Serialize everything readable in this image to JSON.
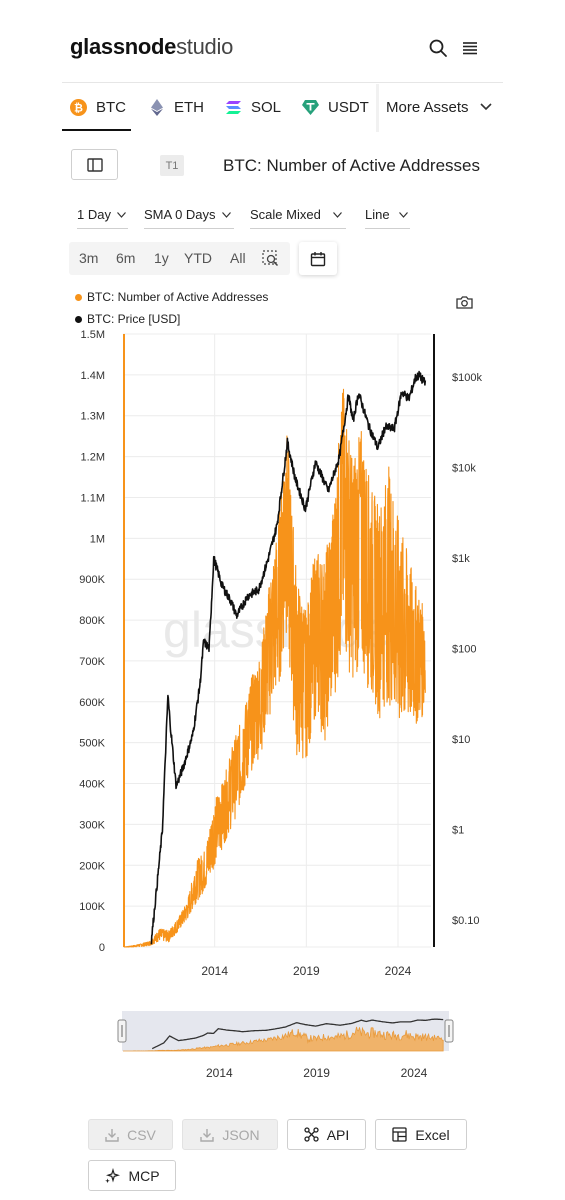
{
  "header": {
    "logo_bold": "glassnode",
    "logo_light": "studio",
    "icons": [
      "search-icon",
      "menu-icon"
    ]
  },
  "assets": {
    "tabs": [
      {
        "label": "BTC",
        "icon": "bitcoin-icon",
        "color": "#f7931a",
        "active": true
      },
      {
        "label": "ETH",
        "icon": "ethereum-icon",
        "color": "#8a92b2"
      },
      {
        "label": "SOL",
        "icon": "solana-icon",
        "color": "#9945ff"
      },
      {
        "label": "USDT",
        "icon": "tether-icon",
        "color": "#26a17b"
      }
    ],
    "more_label": "More Assets"
  },
  "chart_header": {
    "tier": "T1",
    "title": "BTC: Number of Active Addresses"
  },
  "controls": {
    "resolution": "1 Day",
    "sma": "SMA 0 Days",
    "scale": "Scale Mixed",
    "chart_type": "Line"
  },
  "ranges": [
    "3m",
    "6m",
    "1y",
    "YTD",
    "All"
  ],
  "chart_data": {
    "type": "line",
    "title": "",
    "legend_placement": "top-left",
    "grid": true,
    "watermark": "glassnode",
    "x": {
      "ticks": [
        "2014",
        "2019",
        "2024"
      ],
      "range": [
        2009.0,
        2025.8
      ]
    },
    "y_left": {
      "scale": "linear",
      "ylim": [
        0,
        1500000
      ],
      "ticks": [
        "0",
        "100K",
        "200K",
        "300K",
        "400K",
        "500K",
        "600K",
        "700K",
        "800K",
        "900K",
        "1M",
        "1.1M",
        "1.2M",
        "1.3M",
        "1.4M",
        "1.5M"
      ]
    },
    "y_right": {
      "scale": "log",
      "ylim": [
        0.05,
        300000
      ],
      "ticks": [
        "$0.10",
        "$1",
        "$10",
        "$100",
        "$1k",
        "$10k",
        "$100k"
      ]
    },
    "series": [
      {
        "name": "BTC: Number of Active Addresses",
        "color": "#f7931a",
        "axis": "left",
        "x": [
          2009.05,
          2009.5,
          2010.0,
          2010.5,
          2011.0,
          2011.5,
          2012.0,
          2012.5,
          2013.0,
          2013.5,
          2014.0,
          2014.5,
          2015.0,
          2015.5,
          2016.0,
          2016.5,
          2017.0,
          2017.5,
          2017.9,
          2018.5,
          2019.0,
          2019.5,
          2020.0,
          2020.5,
          2021.0,
          2021.5,
          2022.0,
          2022.5,
          2023.0,
          2023.5,
          2024.0,
          2024.5,
          2025.0,
          2025.5
        ],
        "y": [
          0,
          2000,
          5000,
          10000,
          30000,
          25000,
          55000,
          90000,
          160000,
          190000,
          280000,
          330000,
          410000,
          470000,
          560000,
          600000,
          750000,
          880000,
          1100000,
          700000,
          640000,
          800000,
          720000,
          860000,
          1050000,
          900000,
          980000,
          870000,
          840000,
          900000,
          810000,
          760000,
          700000,
          660000
        ],
        "y_high": [
          0,
          3000,
          8000,
          15000,
          45000,
          40000,
          70000,
          110000,
          210000,
          240000,
          360000,
          410000,
          500000,
          560000,
          660000,
          720000,
          900000,
          1050000,
          1290000,
          900000,
          820000,
          980000,
          950000,
          1090000,
          1380000,
          1200000,
          1270000,
          1130000,
          1080000,
          1180000,
          1050000,
          970000,
          880000,
          820000
        ],
        "y_low": [
          0,
          0,
          1000,
          4000,
          15000,
          12000,
          38000,
          65000,
          110000,
          140000,
          200000,
          250000,
          300000,
          360000,
          430000,
          470000,
          560000,
          630000,
          760000,
          450000,
          460000,
          560000,
          500000,
          600000,
          720000,
          650000,
          680000,
          610000,
          560000,
          600000,
          520000,
          530000,
          540000,
          570000
        ]
      },
      {
        "name": "BTC: Price [USD]",
        "color": "#111111",
        "axis": "right",
        "x": [
          2010.55,
          2010.9,
          2011.15,
          2011.45,
          2011.6,
          2011.9,
          2012.3,
          2012.8,
          2013.2,
          2013.4,
          2013.7,
          2013.95,
          2014.4,
          2014.9,
          2015.2,
          2015.8,
          2016.4,
          2016.9,
          2017.4,
          2017.97,
          2018.4,
          2018.95,
          2019.5,
          2019.95,
          2020.2,
          2020.8,
          2021.3,
          2021.55,
          2021.85,
          2022.4,
          2022.9,
          2023.3,
          2023.8,
          2024.2,
          2024.6,
          2024.95,
          2025.15,
          2025.5
        ],
        "y": [
          0.06,
          0.3,
          1.0,
          30,
          13,
          3,
          5,
          11,
          40,
          120,
          100,
          1000,
          500,
          330,
          230,
          380,
          450,
          950,
          2300,
          19000,
          7500,
          3500,
          11500,
          7200,
          5500,
          13000,
          63000,
          33000,
          67000,
          29000,
          16500,
          28000,
          27000,
          69000,
          58000,
          98000,
          105000,
          85000
        ]
      }
    ]
  },
  "navigator": {
    "ticks": [
      "2014",
      "2019",
      "2024"
    ]
  },
  "exports": [
    {
      "label": "CSV",
      "icon": "download-icon",
      "enabled": false
    },
    {
      "label": "JSON",
      "icon": "download-icon",
      "enabled": false
    },
    {
      "label": "API",
      "icon": "api-icon",
      "enabled": true
    },
    {
      "label": "Excel",
      "icon": "excel-icon",
      "enabled": true
    },
    {
      "label": "MCP",
      "icon": "sparkle-icon",
      "enabled": true
    }
  ]
}
